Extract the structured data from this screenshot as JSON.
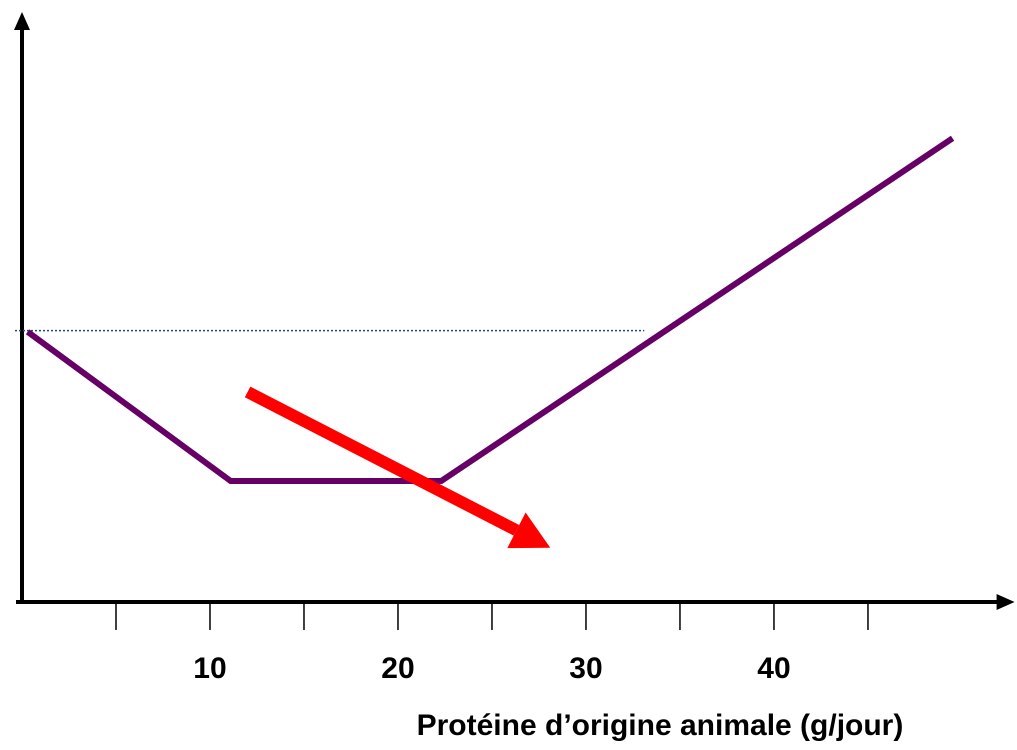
{
  "chart_data": {
    "type": "line",
    "xlabel": "Protéine d’origine animale (g/jour)",
    "xlim": [
      0,
      52.8
    ],
    "ylim": [
      0,
      100
    ],
    "xticks": [
      10,
      20,
      30,
      40
    ],
    "minor_xticks": [
      5,
      15,
      25,
      35,
      45
    ],
    "series": [
      {
        "color": "#660066",
        "x": [
          0.3,
          11.1,
          22.3,
          49.5
        ],
        "values": [
          45.8,
          20.5,
          20.5,
          78.6
        ]
      }
    ],
    "reference_line": {
      "y": 46,
      "x": [
        0,
        33.1
      ],
      "color": "#1f4e79"
    },
    "arrow": {
      "x": [
        12,
        28.1
      ],
      "y": [
        35.6,
        9.2
      ],
      "color": "#ff0000"
    }
  }
}
